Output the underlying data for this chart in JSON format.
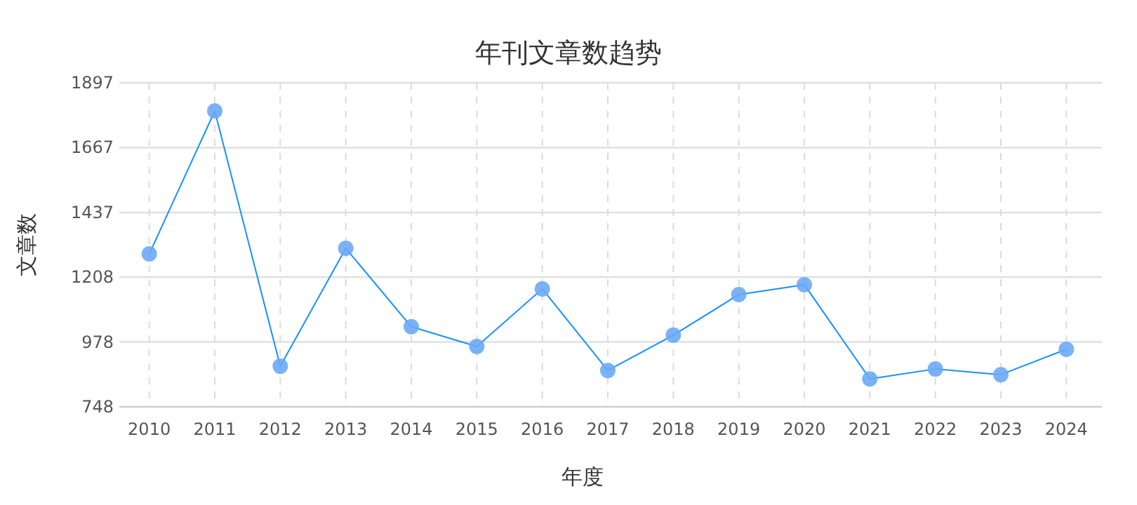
{
  "chart_data": {
    "type": "line",
    "title": "年刊文章数趋势",
    "xlabel": "年度",
    "ylabel": "文章数",
    "categories": [
      "2010",
      "2011",
      "2012",
      "2013",
      "2014",
      "2015",
      "2016",
      "2017",
      "2018",
      "2019",
      "2020",
      "2021",
      "2022",
      "2023",
      "2024"
    ],
    "series": [
      {
        "color": "#1890ff",
        "values": [
          1290,
          1797,
          892,
          1310,
          1032,
          962,
          1166,
          877,
          1002,
          1146,
          1181,
          847,
          882,
          862,
          952
        ]
      }
    ],
    "marker": "circle",
    "line_style": "solid",
    "grid": true,
    "ylim": [
      748,
      1897
    ],
    "yticks": [
      748,
      978,
      1208,
      1437,
      1667,
      1897
    ]
  }
}
